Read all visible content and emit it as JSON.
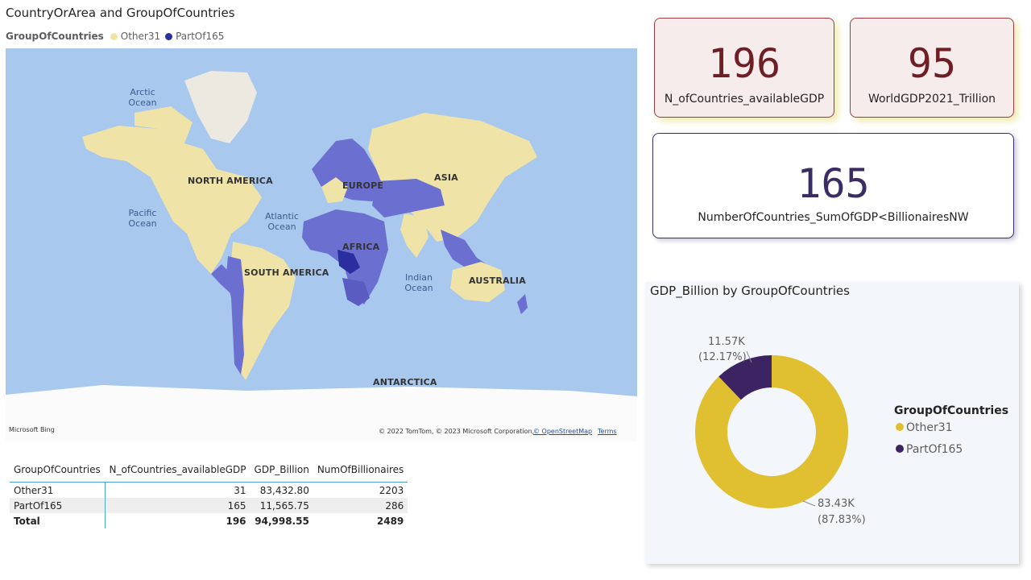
{
  "map": {
    "title": "CountryOrArea and GroupOfCountries",
    "legend_title": "GroupOfCountries",
    "legend_items": [
      {
        "label": "Other31",
        "color": "#f0e3a8"
      },
      {
        "label": "PartOf165",
        "color": "#2b2e9e"
      }
    ],
    "oceans": {
      "arctic": "Arctic Ocean",
      "pacific": "Pacific Ocean",
      "atlantic": "Atlantic Ocean",
      "indian": "Indian Ocean"
    },
    "continents": {
      "north_america": "NORTH AMERICA",
      "south_america": "SOUTH AMERICA",
      "europe": "EUROPE",
      "asia": "ASIA",
      "africa": "AFRICA",
      "australia": "AUSTRALIA",
      "antarctica": "ANTARCTICA"
    },
    "logo": "Microsoft Bing",
    "copyright": "© 2022 TomTom, © 2023 Microsoft Corporation,",
    "osm_link": "© OpenStreetMap",
    "terms_link": "Terms"
  },
  "cards": {
    "countries_available": {
      "value": "196",
      "label": "N_ofCountries_availableGDP"
    },
    "world_gdp": {
      "value": "95",
      "label": "WorldGDP2021_Trillion"
    },
    "sum_gdp": {
      "value": "165",
      "label": "NumberOfCountries_SumOfGDP<BillionairesNW"
    }
  },
  "table": {
    "headers": [
      "GroupOfCountries",
      "N_ofCountries_availableGDP",
      "GDP_Billion",
      "NumOfBillionaires"
    ],
    "rows": [
      [
        "Other31",
        "31",
        "83,432.80",
        "2203"
      ],
      [
        "PartOf165",
        "165",
        "11,565.75",
        "286"
      ]
    ],
    "total": [
      "Total",
      "196",
      "94,998.55",
      "2489"
    ]
  },
  "chart_data": {
    "type": "pie",
    "title": "GDP_Billion by GroupOfCountries",
    "legend_title": "GroupOfCountries",
    "legend_position": "right",
    "slices": [
      {
        "name": "Other31",
        "value": 83432.8,
        "label": "83.43K",
        "percent_label": "(87.83%)",
        "color": "#e0c030"
      },
      {
        "name": "PartOf165",
        "value": 11565.75,
        "label": "11.57K",
        "percent_label": "(12.17%)",
        "color": "#3b2461"
      }
    ]
  }
}
